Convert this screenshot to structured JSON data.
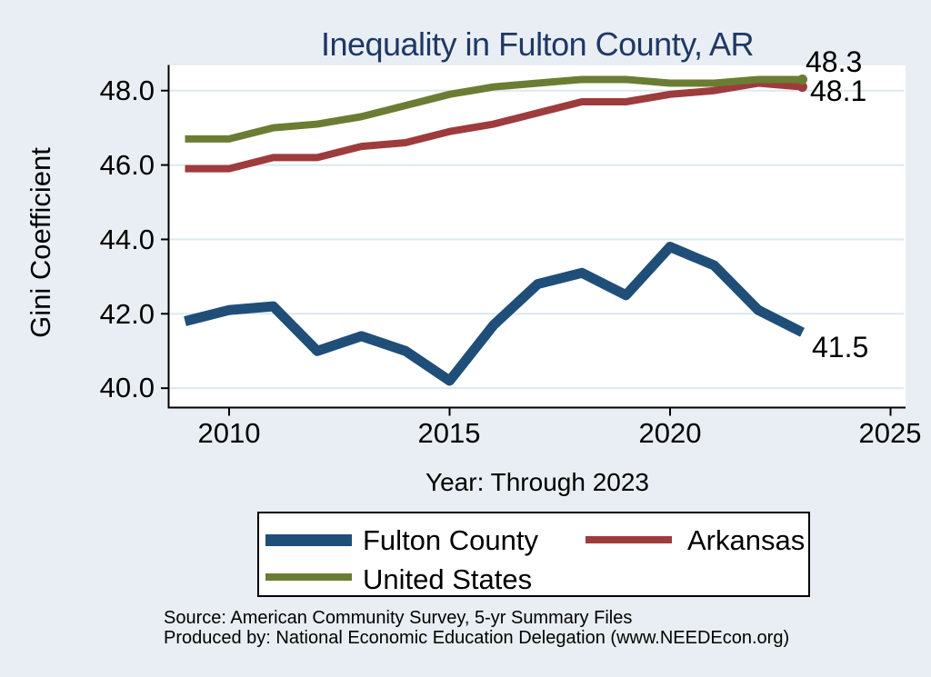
{
  "title": "Inequality in Fulton County, AR",
  "y_axis": {
    "label": "Gini Coefficient",
    "ticks": [
      48,
      46,
      44,
      42,
      40
    ],
    "tick_labels": [
      "48.0",
      "46.0",
      "44.0",
      "42.0",
      "40.0"
    ]
  },
  "x_axis": {
    "label": "Year: Through 2023",
    "ticks": [
      2010,
      2015,
      2020,
      2025
    ],
    "tick_labels": [
      "2010",
      "2015",
      "2020",
      "2025"
    ]
  },
  "chart_data": {
    "type": "line",
    "x": [
      2009,
      2010,
      2011,
      2012,
      2013,
      2014,
      2015,
      2016,
      2017,
      2018,
      2019,
      2020,
      2021,
      2022,
      2023
    ],
    "series": [
      {
        "name": "Fulton County",
        "color": "#1f4e79",
        "line_width": 11,
        "end_marker": false,
        "values": [
          41.8,
          42.1,
          42.2,
          41.0,
          41.4,
          41.0,
          40.2,
          41.7,
          42.8,
          43.1,
          42.5,
          43.8,
          43.3,
          42.1,
          41.5
        ]
      },
      {
        "name": "Arkansas",
        "color": "#9e3b3d",
        "line_width": 8,
        "end_marker": true,
        "values": [
          45.9,
          45.9,
          46.2,
          46.2,
          46.5,
          46.6,
          46.9,
          47.1,
          47.4,
          47.7,
          47.7,
          47.9,
          48.0,
          48.2,
          48.1
        ]
      },
      {
        "name": "United States",
        "color": "#6b7d33",
        "line_width": 8,
        "end_marker": true,
        "values": [
          46.7,
          46.7,
          47.0,
          47.1,
          47.3,
          47.6,
          47.9,
          48.1,
          48.2,
          48.3,
          48.3,
          48.2,
          48.2,
          48.3,
          48.3
        ]
      }
    ],
    "xlim": [
      2008.6,
      2025.35
    ],
    "ylim": [
      39.4,
      48.8
    ],
    "grid": true,
    "legend_position": "bottom",
    "end_labels": [
      {
        "text": "48.3",
        "series": "United States"
      },
      {
        "text": "48.1",
        "series": "Arkansas"
      },
      {
        "text": "41.5",
        "series": "Fulton County"
      }
    ]
  },
  "legend": {
    "items": [
      {
        "label": "Fulton County",
        "color": "#1f4e79"
      },
      {
        "label": "Arkansas",
        "color": "#9e3b3d"
      },
      {
        "label": "United States",
        "color": "#6b7d33"
      }
    ]
  },
  "footer": {
    "line1": "Source: American Community Survey, 5-yr Summary Files",
    "line2": "Produced by: National Economic Education Delegation (www.NEEDEcon.org)"
  },
  "colors": {
    "background": "#e8eef3",
    "plot_background": "#ffffff",
    "gridline": "#dce8ee",
    "title": "#1f3864",
    "axis": "#000000"
  }
}
